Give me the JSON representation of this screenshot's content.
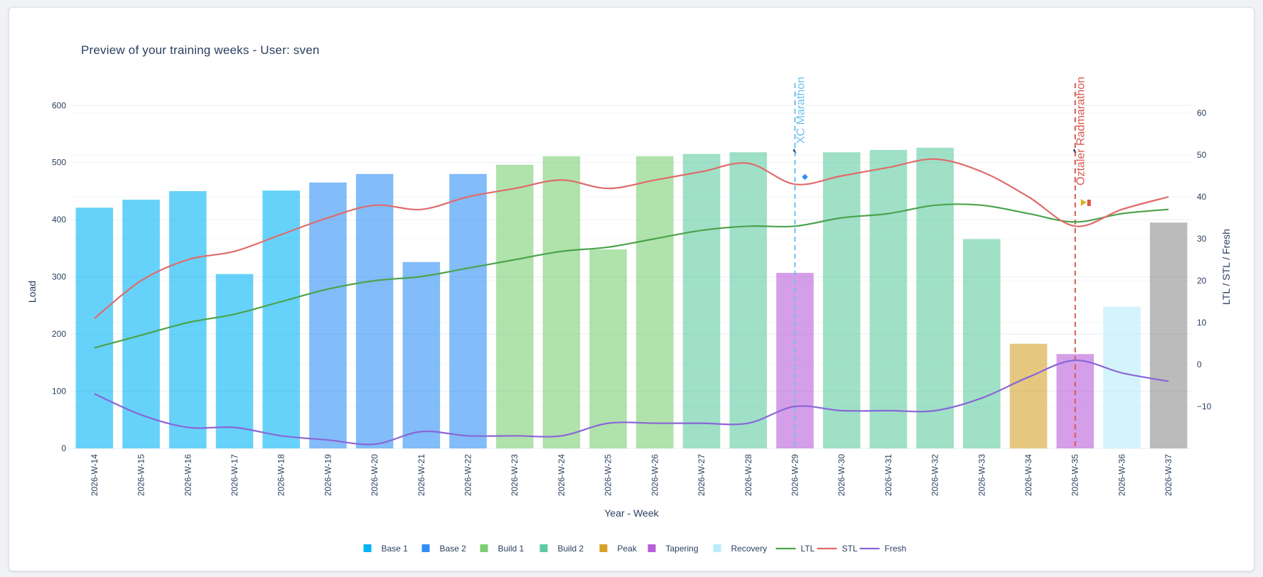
{
  "title": "Preview of your training weeks - User: sven",
  "colors": {
    "Base 1": "#00b4f5",
    "Base 2": "#2f8ff5",
    "Build 1": "#7ccf74",
    "Build 2": "#5fcba2",
    "Peak": "#d6a12c",
    "Tapering": "#b95ed8",
    "Recovery": "#b8ecfa",
    "Other": "#8d8d8d",
    "LTL": "#4ba34b",
    "STL": "#e06b6b",
    "Fresh": "#8a66d6"
  },
  "chart_data": {
    "type": "bar",
    "xlabel": "Year - Week",
    "ylabel": "Load",
    "y2label": "LTL / STL / Fresh",
    "ylim": [
      0,
      660
    ],
    "y2lim": [
      -20,
      70
    ],
    "yticks": [
      "0",
      "100",
      "200",
      "300",
      "400",
      "500",
      "600"
    ],
    "y2ticks": [
      "−10",
      "0",
      "10",
      "20",
      "30",
      "40",
      "50",
      "60"
    ],
    "grid": true,
    "legend_position": "bottom-center",
    "categories": [
      "2026-W-14",
      "2026-W-15",
      "2026-W-16",
      "2026-W-17",
      "2026-W-18",
      "2026-W-19",
      "2026-W-20",
      "2026-W-21",
      "2026-W-22",
      "2026-W-23",
      "2026-W-24",
      "2026-W-25",
      "2026-W-26",
      "2026-W-27",
      "2026-W-28",
      "2026-W-29",
      "2026-W-30",
      "2026-W-31",
      "2026-W-32",
      "2026-W-33",
      "2026-W-34",
      "2026-W-35",
      "2026-W-36",
      "2026-W-37"
    ],
    "bars": {
      "values": [
        421,
        435,
        450,
        305,
        451,
        465,
        480,
        326,
        480,
        496,
        511,
        348,
        511,
        515,
        518,
        307,
        518,
        522,
        526,
        366,
        183,
        165,
        248,
        395
      ],
      "phases": [
        "Base 1",
        "Base 1",
        "Base 1",
        "Base 1",
        "Base 1",
        "Base 2",
        "Base 2",
        "Base 2",
        "Base 2",
        "Build 1",
        "Build 1",
        "Build 1",
        "Build 1",
        "Build 2",
        "Build 2",
        "Tapering",
        "Build 2",
        "Build 2",
        "Build 2",
        "Build 2",
        "Peak",
        "Tapering",
        "Recovery",
        "Other"
      ]
    },
    "lines": [
      {
        "name": "LTL",
        "values": [
          4,
          7,
          10,
          12,
          15,
          18,
          20,
          21,
          23,
          25,
          27,
          28,
          30,
          32,
          33,
          33,
          35,
          36,
          38,
          38,
          36,
          34,
          36,
          37
        ]
      },
      {
        "name": "STL",
        "values": [
          11,
          20,
          25,
          27,
          31,
          35,
          38,
          37,
          40,
          42,
          44,
          42,
          44,
          46,
          48,
          43,
          45,
          47,
          49,
          46,
          40,
          33,
          37,
          40
        ]
      },
      {
        "name": "Fresh",
        "values": [
          -7,
          -12,
          -15,
          -15,
          -17,
          -18,
          -19,
          -16,
          -17,
          -17,
          -17,
          -14,
          -14,
          -14,
          -14,
          -10,
          -11,
          -11,
          -11,
          -8,
          -3,
          1,
          -2,
          -4
        ]
      }
    ],
    "events": [
      {
        "label": "XC Marathon",
        "week": "2026-W-29",
        "color": "#6ec1ec"
      },
      {
        "label": "Öztaler Radmarathon",
        "week": "2026-W-35",
        "color": "#d9574e"
      }
    ],
    "legend": [
      {
        "label": "Base 1",
        "type": "bar"
      },
      {
        "label": "Base 2",
        "type": "bar"
      },
      {
        "label": "Build 1",
        "type": "bar"
      },
      {
        "label": "Build 2",
        "type": "bar"
      },
      {
        "label": "Peak",
        "type": "bar"
      },
      {
        "label": "Tapering",
        "type": "bar"
      },
      {
        "label": "Recovery",
        "type": "bar"
      },
      {
        "label": "LTL",
        "type": "line"
      },
      {
        "label": "STL",
        "type": "line"
      },
      {
        "label": "Fresh",
        "type": "line"
      }
    ]
  }
}
